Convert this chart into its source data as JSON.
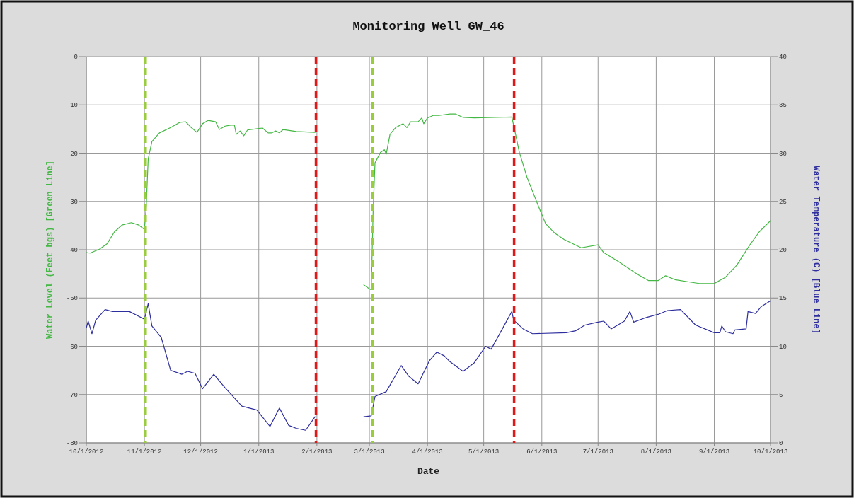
{
  "chart_data": {
    "type": "line",
    "title": "Monitoring Well GW_46",
    "xlabel": "Date",
    "ylabel": "Water Level (Feet bgs) [Green Line]",
    "y2label": "Water Temperature (C) [Blue Line]",
    "xlim": [
      "2012-10-01",
      "2013-10-01"
    ],
    "xticks": [
      {
        "value": "2012-10-01",
        "label": "10/1/2012"
      },
      {
        "value": "2012-11-01",
        "label": "11/1/2012"
      },
      {
        "value": "2012-12-01",
        "label": "12/1/2012"
      },
      {
        "value": "2013-01-01",
        "label": "1/1/2013"
      },
      {
        "value": "2013-02-01",
        "label": "2/1/2013"
      },
      {
        "value": "2013-03-01",
        "label": "3/1/2013"
      },
      {
        "value": "2013-04-01",
        "label": "4/1/2013"
      },
      {
        "value": "2013-05-01",
        "label": "5/1/2013"
      },
      {
        "value": "2013-06-01",
        "label": "6/1/2013"
      },
      {
        "value": "2013-07-01",
        "label": "7/1/2013"
      },
      {
        "value": "2013-08-01",
        "label": "8/1/2013"
      },
      {
        "value": "2013-09-01",
        "label": "9/1/2013"
      },
      {
        "value": "2013-10-01",
        "label": "10/1/2013"
      }
    ],
    "ylim": [
      -80,
      0
    ],
    "yticks": [
      -80,
      -70,
      -60,
      -50,
      -40,
      -30,
      -20,
      -10,
      0
    ],
    "y2lim": [
      0,
      40
    ],
    "y2ticks": [
      0,
      5,
      10,
      15,
      20,
      25,
      30,
      35,
      40
    ],
    "grid": true,
    "marker": "none",
    "line_style": "solid",
    "series": [
      {
        "color": "#44b844",
        "x": [
          "2012-10-01",
          "2012-10-03",
          "2012-10-08",
          "2012-10-12",
          "2012-10-16",
          "2012-10-20",
          "2012-10-25",
          "2012-10-29",
          "2012-11-01",
          "2012-11-02",
          "2012-11-03",
          "2012-11-05",
          "2012-11-09",
          "2012-11-15",
          "2012-11-20",
          "2012-11-23",
          "2012-11-26",
          "2012-11-29",
          "2012-12-02",
          "2012-12-05",
          "2012-12-09",
          "2012-12-11",
          "2012-12-14",
          "2012-12-17",
          "2012-12-19",
          "2012-12-20",
          "2012-12-22",
          "2012-12-24",
          "2012-12-26",
          "2013-01-01",
          "2013-01-03",
          "2013-01-06",
          "2013-01-08",
          "2013-01-10",
          "2013-01-12",
          "2013-01-14",
          "2013-01-21",
          "2013-01-31",
          "2013-02-15",
          "2013-02-26",
          "2013-03-01",
          "2013-03-02",
          "2013-03-03",
          "2013-03-04",
          "2013-03-07",
          "2013-03-09",
          "2013-03-10",
          "2013-03-12",
          "2013-03-15",
          "2013-03-19",
          "2013-03-21",
          "2013-03-23",
          "2013-03-27",
          "2013-03-29",
          "2013-03-30",
          "2013-04-01",
          "2013-04-04",
          "2013-04-07",
          "2013-04-13",
          "2013-04-16",
          "2013-04-20",
          "2013-04-26",
          "2013-05-07",
          "2013-05-16",
          "2013-05-18",
          "2013-05-20",
          "2013-05-24",
          "2013-05-30",
          "2013-06-03",
          "2013-06-08",
          "2013-06-13",
          "2013-06-22",
          "2013-07-01",
          "2013-07-04",
          "2013-07-12",
          "2013-07-22",
          "2013-07-28",
          "2013-08-02",
          "2013-08-06",
          "2013-08-11",
          "2013-08-19",
          "2013-08-24",
          "2013-09-01",
          "2013-09-07",
          "2013-09-13",
          "2013-09-20",
          "2013-09-25",
          "2013-10-01"
        ],
        "values": [
          -40.6,
          -40.7,
          -39.9,
          -38.8,
          -36.3,
          -34.9,
          -34.4,
          -34.9,
          -35.8,
          -30.8,
          -21.2,
          -17.6,
          -15.8,
          -14.7,
          -13.6,
          -13.5,
          -14.7,
          -15.7,
          -13.9,
          -13.2,
          -13.5,
          -15.1,
          -14.4,
          -14.2,
          -14.2,
          -16.1,
          -15.4,
          -16.4,
          -15.2,
          -14.9,
          -14.8,
          -15.8,
          -15.8,
          -15.4,
          -15.8,
          -15.1,
          -15.5,
          -15.7,
          null,
          -47.3,
          -48.1,
          -48.3,
          -32,
          -22,
          -19.8,
          -19.3,
          -20.2,
          -16.1,
          -14.7,
          -13.9,
          -14.7,
          -13.5,
          -13.5,
          -12.7,
          -13.9,
          -12.7,
          -12.2,
          -12.2,
          -11.9,
          -11.9,
          -12.6,
          -12.7,
          -12.6,
          -12.5,
          -16.1,
          -19.8,
          -24.9,
          -30.8,
          -34.6,
          -36.6,
          -37.9,
          -39.6,
          -39,
          -40.6,
          -42.5,
          -45.1,
          -46.4,
          -46.4,
          -45.4,
          -46.2,
          -46.7,
          -47,
          -47,
          -45.7,
          -43.2,
          -39,
          -36.3,
          -34
        ]
      },
      {
        "color": "#2e2e9e",
        "axis": "y2",
        "x": [
          "2012-10-01",
          "2012-10-02",
          "2012-10-04",
          "2012-10-06",
          "2012-10-11",
          "2012-10-15",
          "2012-10-24",
          "2012-11-01",
          "2012-11-03",
          "2012-11-05",
          "2012-11-10",
          "2012-11-15",
          "2012-11-21",
          "2012-11-24",
          "2012-11-28",
          "2012-12-02",
          "2012-12-08",
          "2012-12-14",
          "2012-12-23",
          "2012-12-31",
          "2013-01-07",
          "2013-01-12",
          "2013-01-17",
          "2013-01-21",
          "2013-01-26",
          "2013-01-31",
          "2013-02-15",
          "2013-02-26",
          "2013-03-02",
          "2013-03-04",
          "2013-03-10",
          "2013-03-18",
          "2013-03-22",
          "2013-03-27",
          "2013-04-02",
          "2013-04-06",
          "2013-04-10",
          "2013-04-13",
          "2013-04-20",
          "2013-04-26",
          "2013-05-02",
          "2013-05-05",
          "2013-05-16",
          "2013-05-17",
          "2013-05-22",
          "2013-05-27",
          "2013-06-14",
          "2013-06-19",
          "2013-06-24",
          "2013-07-01",
          "2013-07-04",
          "2013-07-08",
          "2013-07-15",
          "2013-07-18",
          "2013-07-20",
          "2013-07-27",
          "2013-08-02",
          "2013-08-07",
          "2013-08-14",
          "2013-08-22",
          "2013-09-01",
          "2013-09-04",
          "2013-09-05",
          "2013-09-07",
          "2013-09-11",
          "2013-09-12",
          "2013-09-18",
          "2013-09-19",
          "2013-09-23",
          "2013-09-26",
          "2013-10-01"
        ],
        "values": [
          11.9,
          12.6,
          11.3,
          12.7,
          13.8,
          13.6,
          13.6,
          12.8,
          14.4,
          12.1,
          10.9,
          7.5,
          7.1,
          7.4,
          7.2,
          5.6,
          7.1,
          5.7,
          3.8,
          3.4,
          1.7,
          3.6,
          1.8,
          1.5,
          1.3,
          2.7,
          null,
          2.7,
          2.8,
          4.8,
          5.3,
          8,
          6.9,
          6.1,
          8.5,
          9.4,
          9,
          8.4,
          7.4,
          8.3,
          10,
          9.7,
          13.6,
          12.7,
          11.8,
          11.3,
          11.4,
          11.6,
          12.2,
          12.5,
          12.6,
          11.8,
          12.6,
          13.6,
          12.5,
          13,
          13.3,
          13.7,
          13.8,
          12.2,
          11.4,
          11.4,
          12.1,
          11.5,
          11.3,
          11.7,
          11.8,
          13.6,
          13.4,
          14.1,
          14.7
        ]
      }
    ],
    "ref_lines": [
      {
        "axis": "x",
        "value": "2012-11-01T15:00",
        "color": "#9acd3c",
        "line_style": "dashed"
      },
      {
        "axis": "x",
        "value": "2013-01-31T12:00",
        "color": "#e01818",
        "line_style": "dashed"
      },
      {
        "axis": "x",
        "value": "2013-03-02T14:00",
        "color": "#9acd3c",
        "line_style": "dashed"
      },
      {
        "axis": "x",
        "value": "2013-05-17T05:00",
        "color": "#e01818",
        "line_style": "dashed"
      }
    ]
  }
}
